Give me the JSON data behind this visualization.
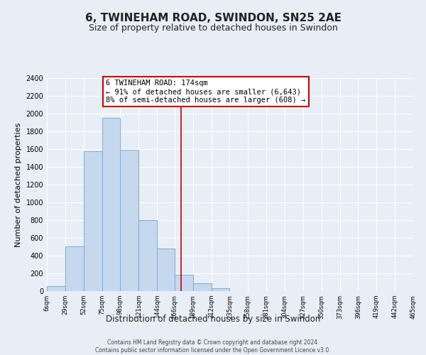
{
  "title": "6, TWINEHAM ROAD, SWINDON, SN25 2AE",
  "subtitle": "Size of property relative to detached houses in Swindon",
  "xlabel": "Distribution of detached houses by size in Swindon",
  "ylabel": "Number of detached properties",
  "bar_color": "#c5d8ed",
  "bar_edge_color": "#7aafd4",
  "bin_edges": [
    6,
    29,
    52,
    75,
    98,
    121,
    144,
    166,
    189,
    212,
    235,
    258,
    281,
    304,
    327,
    350,
    373,
    396,
    419,
    442,
    465
  ],
  "bar_heights": [
    55,
    505,
    1580,
    1950,
    1590,
    800,
    480,
    185,
    90,
    35,
    0,
    0,
    0,
    0,
    0,
    0,
    0,
    0,
    0,
    0
  ],
  "property_line_x": 174,
  "property_line_color": "#cc0000",
  "annotation_title": "6 TWINEHAM ROAD: 174sqm",
  "annotation_line1": "← 91% of detached houses are smaller (6,643)",
  "annotation_line2": "8% of semi-detached houses are larger (608) →",
  "annotation_box_facecolor": "#ffffff",
  "annotation_box_edgecolor": "#cc0000",
  "ylim": [
    0,
    2400
  ],
  "yticks": [
    0,
    200,
    400,
    600,
    800,
    1000,
    1200,
    1400,
    1600,
    1800,
    2000,
    2200,
    2400
  ],
  "footer_line1": "Contains HM Land Registry data © Crown copyright and database right 2024.",
  "footer_line2": "Contains public sector information licensed under the Open Government Licence v3.0.",
  "background_color": "#e8eef5",
  "plot_bg_color": "#e8eef5",
  "grid_color": "#ffffff"
}
